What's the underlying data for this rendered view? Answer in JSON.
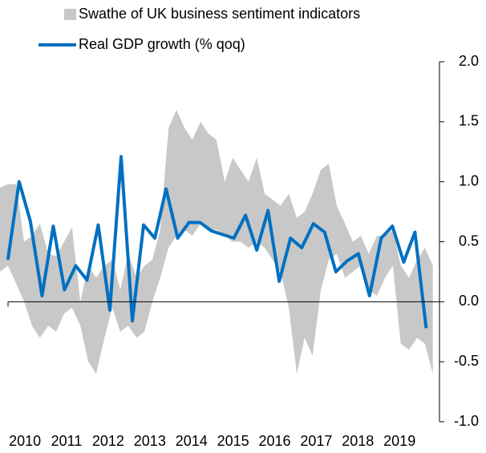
{
  "chart_data": {
    "type": "line",
    "legend": "top-left",
    "y_axis_side": "right",
    "xlim": [
      2009.4,
      2019.96
    ],
    "xticks": [
      2010,
      2011,
      2012,
      2013,
      2014,
      2015,
      2016,
      2017,
      2018,
      2019
    ],
    "ylim": [
      -1,
      2
    ],
    "yticks": [
      {
        "value": 2,
        "label": "2.0"
      },
      {
        "value": 1.5,
        "label": "1.5"
      },
      {
        "value": 1,
        "label": "1.0"
      },
      {
        "value": 0.5,
        "label": "0.5"
      },
      {
        "value": 0,
        "label": "0.0"
      },
      {
        "value": -0.5,
        "label": "-0.5"
      },
      {
        "value": -1,
        "label": "-1.0"
      }
    ],
    "series": [
      {
        "name": "Swathe of UK business sentiment indicators",
        "kind": "band",
        "color": "#c8c8c8",
        "x": [
          2009.4,
          2009.59,
          2009.79,
          2009.98,
          2010.17,
          2010.36,
          2010.56,
          2010.75,
          2010.94,
          2011.13,
          2011.33,
          2011.52,
          2011.71,
          2011.91,
          2012.1,
          2012.29,
          2012.48,
          2012.68,
          2012.87,
          2013.06,
          2013.25,
          2013.45,
          2013.64,
          2013.83,
          2014.02,
          2014.22,
          2014.41,
          2014.6,
          2014.8,
          2014.99,
          2015.18,
          2015.37,
          2015.57,
          2015.76,
          2015.95,
          2016.14,
          2016.34,
          2016.53,
          2016.72,
          2016.91,
          2017.11,
          2017.3,
          2017.49,
          2017.69,
          2017.88,
          2018.07,
          2018.26,
          2018.46,
          2018.65,
          2018.84,
          2019.03,
          2019.23,
          2019.42,
          2019.61,
          2019.8
        ],
        "upper": [
          0.95,
          0.98,
          0.98,
          0.5,
          0.55,
          0.65,
          0.4,
          0.38,
          0.5,
          0.62,
          0.0,
          0.3,
          0.2,
          0.3,
          0.35,
          0.1,
          0.4,
          0.2,
          0.3,
          0.35,
          0.6,
          1.45,
          1.6,
          1.45,
          1.35,
          1.5,
          1.4,
          1.35,
          1.0,
          1.2,
          1.1,
          1.0,
          1.2,
          0.9,
          0.85,
          0.8,
          0.9,
          0.7,
          0.75,
          0.9,
          1.1,
          1.15,
          0.8,
          0.65,
          0.5,
          0.55,
          0.4,
          0.55,
          0.55,
          0.6,
          0.3,
          0.2,
          0.35,
          0.45,
          0.3
        ],
        "lower": [
          0.25,
          0.3,
          0.15,
          0.0,
          -0.2,
          -0.3,
          -0.2,
          -0.25,
          -0.1,
          -0.05,
          -0.2,
          -0.5,
          -0.6,
          -0.3,
          -0.05,
          -0.25,
          -0.2,
          -0.3,
          -0.25,
          0.0,
          0.2,
          0.45,
          0.55,
          0.6,
          0.55,
          0.65,
          0.6,
          0.6,
          0.55,
          0.5,
          0.5,
          0.45,
          0.5,
          0.45,
          0.35,
          0.25,
          -0.05,
          -0.6,
          -0.3,
          -0.45,
          0.1,
          0.35,
          0.4,
          0.2,
          0.25,
          0.3,
          0.1,
          0.05,
          0.2,
          0.3,
          -0.35,
          -0.4,
          -0.3,
          -0.35,
          -0.6
        ]
      },
      {
        "name": "Real GDP growth (% qoq)",
        "kind": "line",
        "color": "#0070c0",
        "x": [
          2009.59,
          2009.86,
          2010.13,
          2010.41,
          2010.68,
          2010.95,
          2011.22,
          2011.49,
          2011.76,
          2012.04,
          2012.31,
          2012.58,
          2012.85,
          2013.12,
          2013.39,
          2013.67,
          2013.94,
          2014.21,
          2014.48,
          2014.75,
          2015.02,
          2015.3,
          2015.57,
          2015.84,
          2016.11,
          2016.38,
          2016.65,
          2016.93,
          2017.2,
          2017.47,
          2017.74,
          2018.01,
          2018.28,
          2018.56,
          2018.83,
          2019.1,
          2019.37,
          2019.64
        ],
        "values": [
          0.35,
          1.0,
          0.67,
          0.05,
          0.63,
          0.1,
          0.3,
          0.18,
          0.64,
          -0.07,
          1.21,
          -0.16,
          0.64,
          0.53,
          0.94,
          0.53,
          0.66,
          0.66,
          0.59,
          0.56,
          0.53,
          0.72,
          0.43,
          0.76,
          0.17,
          0.53,
          0.45,
          0.65,
          0.58,
          0.25,
          0.34,
          0.4,
          0.05,
          0.53,
          0.63,
          0.33,
          0.58,
          -0.22
        ]
      }
    ]
  }
}
